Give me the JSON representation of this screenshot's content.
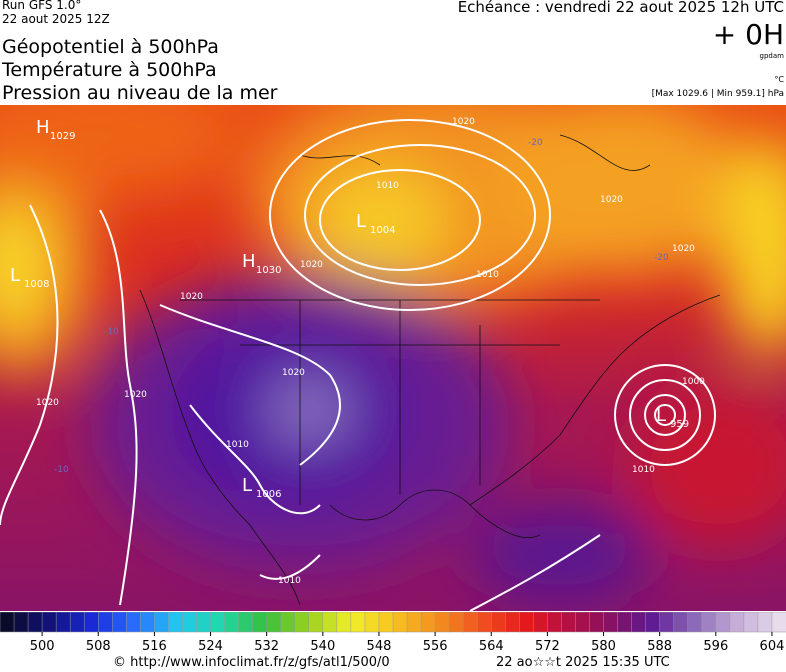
{
  "header": {
    "run": "Run GFS 1.0°",
    "date": "22 aout 2025 12Z",
    "titles": [
      "Géopotentiel à 500hPa",
      "Température à 500hPa",
      "Pression au niveau de la mer"
    ],
    "forecast": "Echéance : vendredi 22 aout 2025 12h UTC",
    "lead": "+ 0H",
    "unit_geo": "gpdam",
    "unit_temp": "°C",
    "extremes": "[Max 1029.6 | Min 959.1] hPa"
  },
  "map": {
    "centers": [
      {
        "type": "H",
        "value": "1029"
      },
      {
        "type": "L",
        "value": "1008"
      },
      {
        "type": "H",
        "value": "1030"
      },
      {
        "type": "L",
        "value": "1004"
      },
      {
        "type": "L",
        "value": "1006"
      },
      {
        "type": "L",
        "value": "959"
      }
    ],
    "isobar_labels": [
      "1020",
      "1010",
      "1010",
      "1020",
      "1020",
      "1020",
      "1020",
      "1020",
      "1020",
      "1020",
      "1010",
      "1000",
      "1010",
      "1010"
    ],
    "temperature_labels": [
      "-20",
      "-20",
      "-10",
      "-10"
    ]
  },
  "colorbar": {
    "range": [
      494,
      606
    ],
    "step": 2,
    "ticks": [
      500,
      508,
      516,
      524,
      532,
      540,
      548,
      556,
      564,
      572,
      580,
      588,
      596,
      604
    ],
    "colors": [
      "#0a0a2a",
      "#12127a",
      "#1a2ad8",
      "#2a70ff",
      "#22c8f0",
      "#20d8a8",
      "#34c040",
      "#98d020",
      "#f0f028",
      "#f8c420",
      "#f49020",
      "#f05420",
      "#e81a18",
      "#b81040",
      "#8a1060",
      "#5e1890",
      "#8a68b8",
      "#c4acd8",
      "#e6dcec"
    ]
  },
  "footer": {
    "source": "© http://www.infoclimat.fr/z/gfs/atl1/500/0",
    "generated": "22 ao☆☆t 2025 15:35 UTC"
  }
}
